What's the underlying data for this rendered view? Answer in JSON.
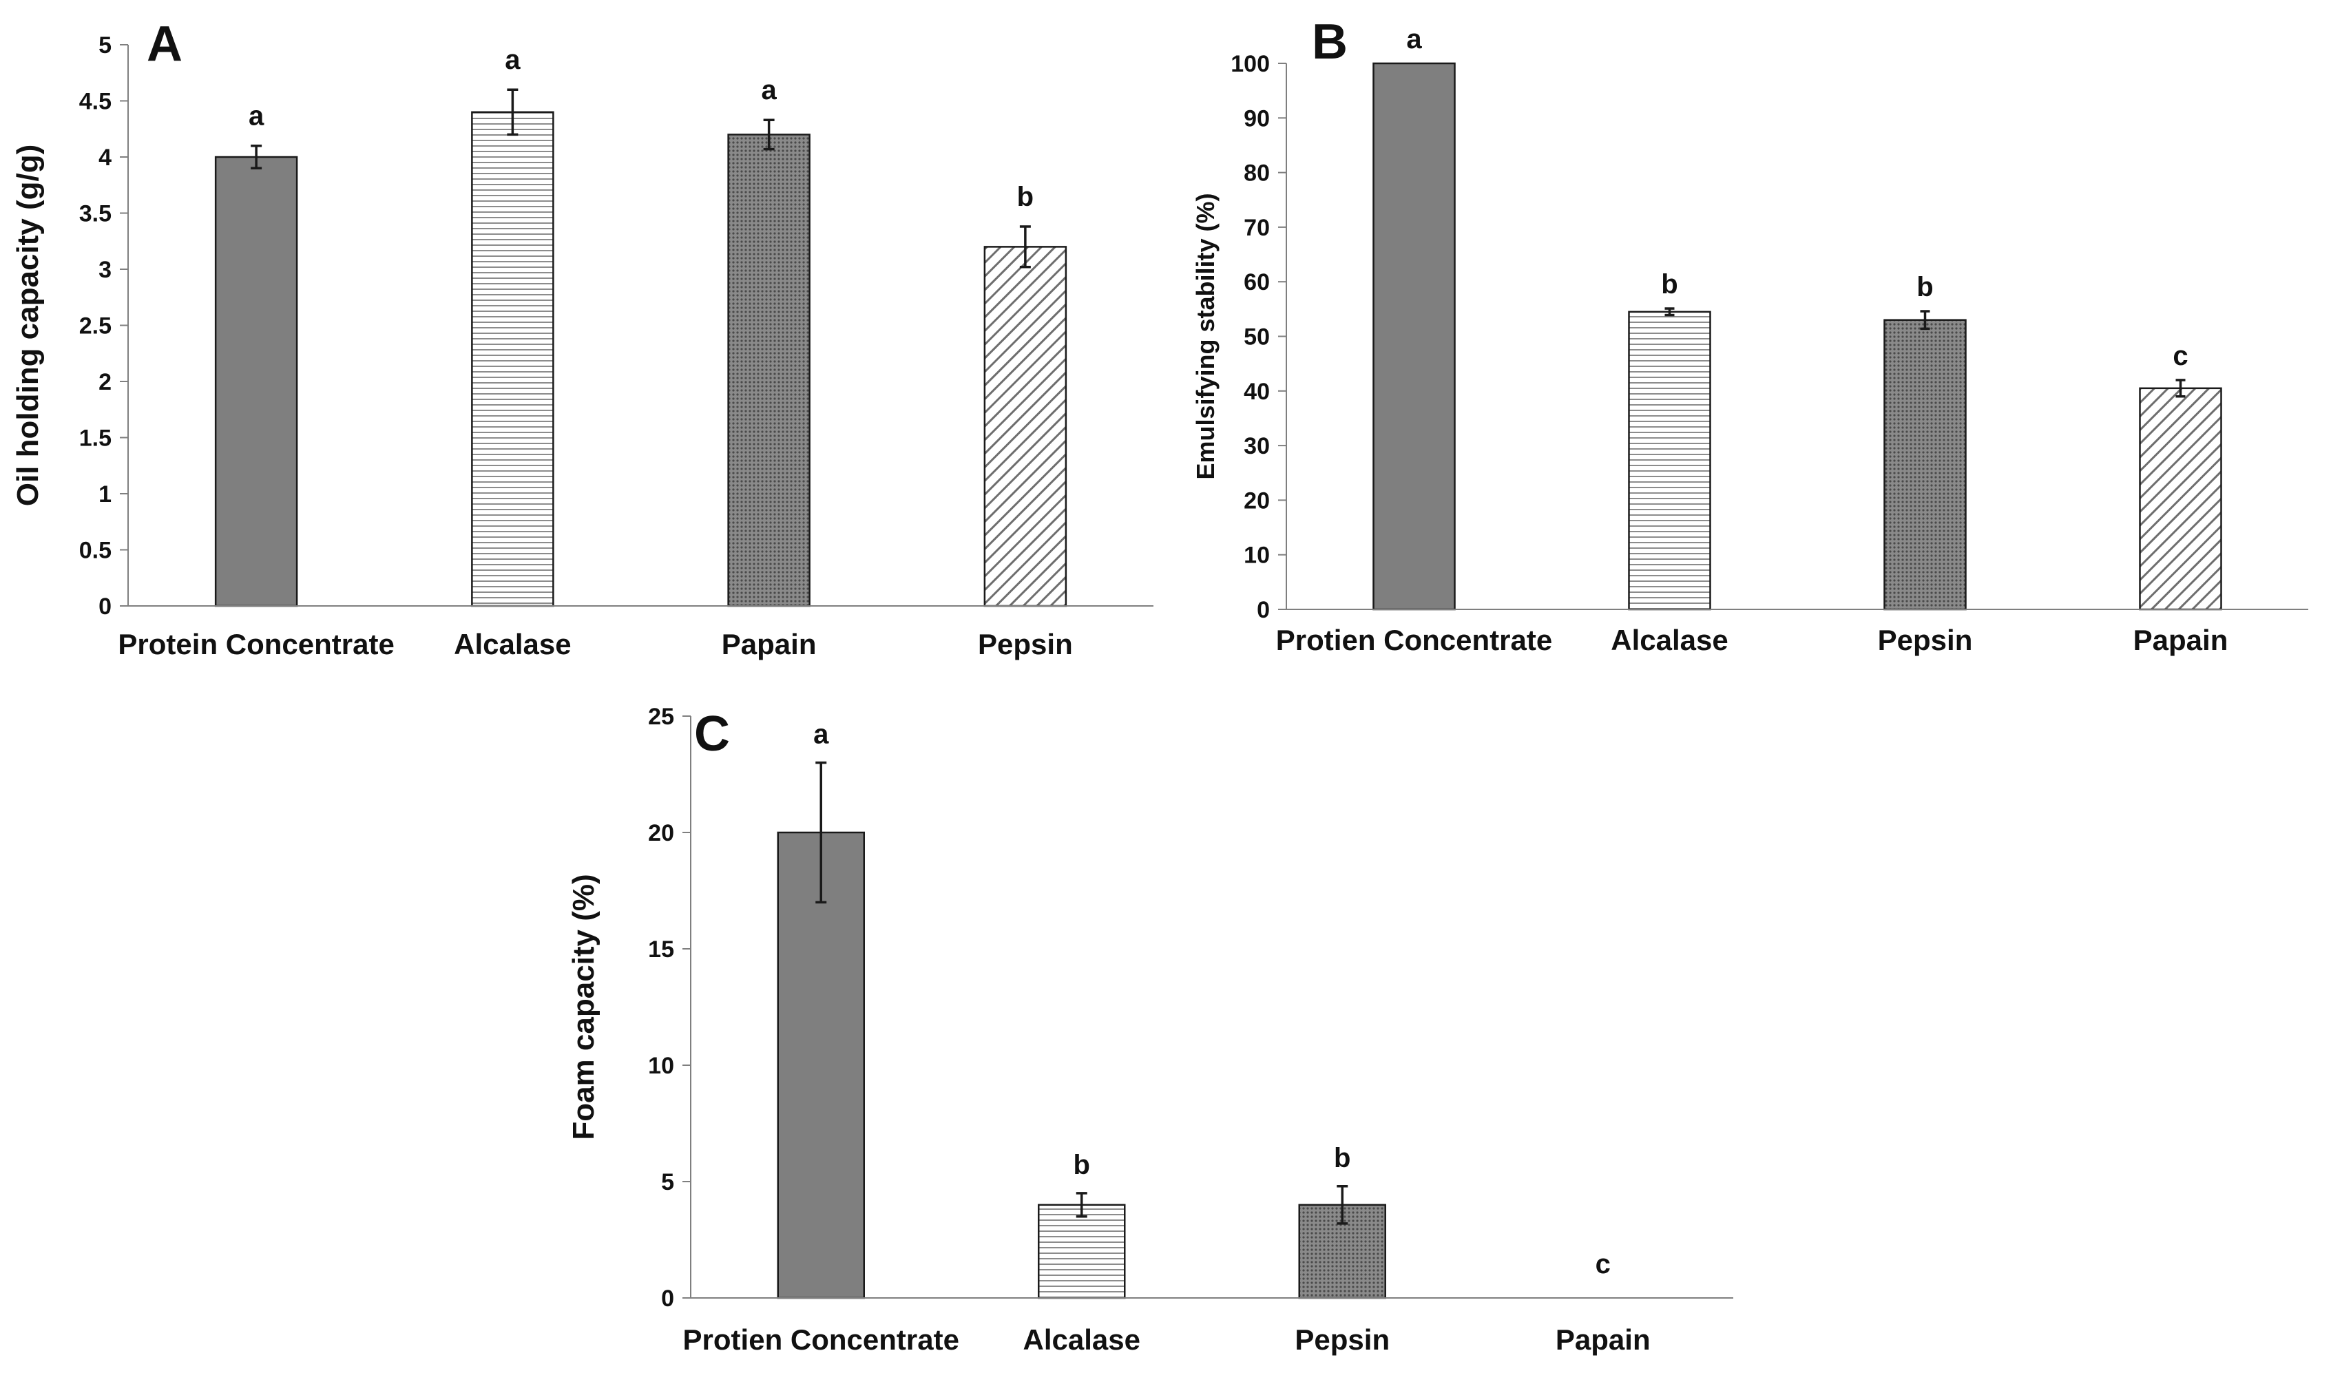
{
  "chart_data": [
    {
      "type": "bar",
      "panel_label": "A",
      "ylabel": "Oil holding capacity (g/g)",
      "xlabel": "",
      "ylim": [
        0,
        5
      ],
      "yticks": [
        "0",
        "0.5",
        "1",
        "1.5",
        "2",
        "2.5",
        "3",
        "3.5",
        "4",
        "4.5",
        "5"
      ],
      "categories": [
        "Protein Concentrate",
        "Alcalase",
        "Papain",
        "Pepsin"
      ],
      "values": [
        4.0,
        4.4,
        4.2,
        3.2
      ],
      "errors": [
        0.1,
        0.2,
        0.13,
        0.18
      ],
      "significance": [
        "a",
        "a",
        "a",
        "b"
      ],
      "patterns": [
        "solid",
        "hlines",
        "dots",
        "diag"
      ],
      "grid": false,
      "legend": "none"
    },
    {
      "type": "bar",
      "panel_label": "B",
      "ylabel": "Emulsifying stability (%)",
      "xlabel": "",
      "ylim": [
        0,
        100
      ],
      "yticks": [
        "0",
        "10",
        "20",
        "30",
        "40",
        "50",
        "60",
        "70",
        "80",
        "90",
        "100"
      ],
      "categories": [
        "Protien Concentrate",
        "Alcalase",
        "Pepsin",
        "Papain"
      ],
      "values": [
        100,
        54.5,
        53,
        40.5
      ],
      "errors": [
        0,
        0.6,
        1.6,
        1.5
      ],
      "significance": [
        "a",
        "b",
        "b",
        "c"
      ],
      "patterns": [
        "solid",
        "hlines",
        "dots",
        "diag"
      ],
      "grid": false,
      "legend": "none"
    },
    {
      "type": "bar",
      "panel_label": "C",
      "ylabel": "Foam capacity (%)",
      "xlabel": "",
      "ylim": [
        0,
        25
      ],
      "yticks": [
        "0",
        "5",
        "10",
        "15",
        "20",
        "25"
      ],
      "categories": [
        "Protien Concentrate",
        "Alcalase",
        "Pepsin",
        "Papain"
      ],
      "values": [
        20,
        4,
        4,
        0
      ],
      "errors": [
        3,
        0.5,
        0.8,
        0
      ],
      "significance": [
        "a",
        "b",
        "b",
        "c"
      ],
      "patterns": [
        "solid",
        "hlines",
        "dots",
        "diag"
      ],
      "grid": false,
      "legend": "none"
    }
  ],
  "colors": {
    "bar_fill": "#7f7f7f",
    "bar_stroke": "#1a1a1a",
    "pattern_bg": "#ffffff",
    "hline_stroke": "#8c8c8c",
    "dot_bg": "#8a8a8a",
    "dot_fill": "#4a4a4a",
    "diag_stroke": "#6e6e6e",
    "axis": "#7f7f7f",
    "text": "#111111"
  }
}
